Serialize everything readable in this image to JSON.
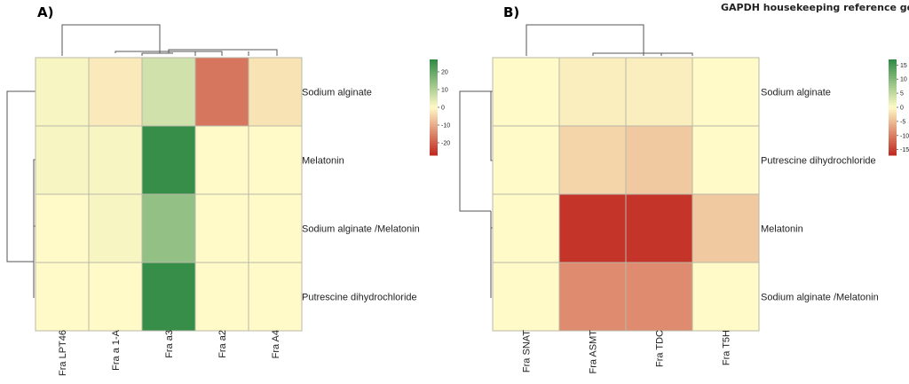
{
  "chart_data": [
    {
      "type": "heatmap",
      "panel_label": "A)",
      "title": "",
      "columns": [
        "Fra LPT46",
        "Fra a 1-A",
        "Fra a3",
        "Fra a2",
        "Fra A4"
      ],
      "rows": [
        "Sodium alginate",
        "Melatonin",
        "Sodium alginate /Melatonin",
        "Putrescine dihydrochloride"
      ],
      "values": [
        [
          1,
          -2,
          6,
          -17,
          -3
        ],
        [
          1,
          1,
          26,
          0,
          0
        ],
        [
          0,
          1,
          14,
          0,
          0
        ],
        [
          0,
          0,
          26,
          0,
          0
        ]
      ],
      "color_range": [
        -27,
        27
      ],
      "colors": {
        "low": "#c0281f",
        "mid": "#fffac8",
        "high": "#2f8a44"
      },
      "legend": {
        "ticks": [
          20,
          10,
          0,
          -10,
          -20
        ],
        "tick_labels": [
          "20",
          "10",
          "0",
          "-10",
          "-20"
        ],
        "placement": "right"
      }
    },
    {
      "type": "heatmap",
      "panel_label": "B)",
      "title": "GAPDH housekeeping reference gene",
      "columns": [
        "Fra SNAT",
        "Fra ASMT",
        "Fra TDC",
        "Fra T5H"
      ],
      "rows": [
        "Sodium alginate",
        "Putrescine dihydrochloride",
        "Melatonin",
        "Sodium alginate /Melatonin"
      ],
      "values": [
        [
          0,
          -1,
          -1,
          0
        ],
        [
          0,
          -3,
          -4,
          0
        ],
        [
          0,
          -16,
          -16,
          -4
        ],
        [
          0,
          -9,
          -9,
          0
        ]
      ],
      "color_range": [
        -17,
        17
      ],
      "colors": {
        "low": "#c0281f",
        "mid": "#fffac8",
        "high": "#2f8a44"
      },
      "legend": {
        "ticks": [
          15,
          10,
          5,
          0,
          -5,
          -10,
          -15
        ],
        "tick_labels": [
          "15",
          "10",
          "5",
          "0",
          "-5",
          "-10",
          "-15"
        ],
        "placement": "right"
      }
    }
  ]
}
